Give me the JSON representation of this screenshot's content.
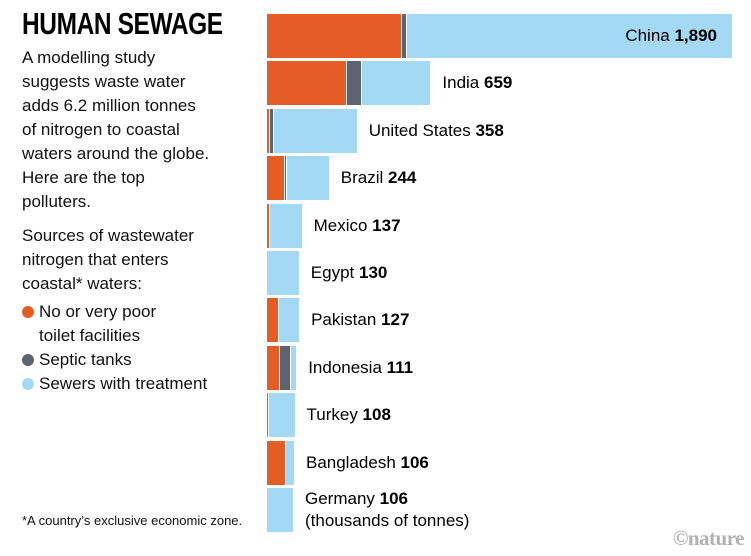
{
  "title": "HUMAN SEWAGE",
  "intro": "A modelling study\nsuggests waste water\nadds 6.2 million tonnes\nof nitrogen to coastal\nwaters around the globe.\nHere are the top\npolluters.",
  "legend": {
    "heading": "Sources of wastewater\nnitrogen that enters\ncoastal* waters:",
    "items": [
      {
        "key": "no-toilet",
        "label": "No or very poor\ntoilet facilities",
        "color": "#e55c27"
      },
      {
        "key": "septic-tanks",
        "label": "Septic tanks",
        "color": "#5b6470"
      },
      {
        "key": "sewers",
        "label": "Sewers with treatment",
        "color": "#a3d9f5"
      }
    ]
  },
  "footnote": "*A country’s exclusive economic zone.",
  "credit": "©nature",
  "chart_data": {
    "type": "bar",
    "orientation": "horizontal",
    "stacked": true,
    "grid": false,
    "legend_position": "left",
    "xlim": [
      0,
      1890
    ],
    "unit": "thousands of tonnes",
    "series": [
      {
        "key": "no-toilet",
        "name": "No or very poor toilet facilities",
        "color": "#e55c27"
      },
      {
        "key": "septic-tanks",
        "name": "Septic tanks",
        "color": "#5b6470"
      },
      {
        "key": "sewers",
        "name": "Sewers with treatment",
        "color": "#a3d9f5"
      }
    ],
    "rows": [
      {
        "country": "China",
        "total": 1890,
        "total_label": "1,890",
        "values": [
          547,
          16,
          1327
        ],
        "label_inside": true
      },
      {
        "country": "India",
        "total": 659,
        "total_label": "659",
        "values": [
          323,
          57,
          279
        ]
      },
      {
        "country": "United States",
        "total": 358,
        "total_label": "358",
        "values": [
          8,
          12,
          338
        ]
      },
      {
        "country": "Brazil",
        "total": 244,
        "total_label": "244",
        "values": [
          69,
          4,
          171
        ]
      },
      {
        "country": "Mexico",
        "total": 137,
        "total_label": "137",
        "values": [
          8,
          0,
          129
        ]
      },
      {
        "country": "Egypt",
        "total": 130,
        "total_label": "130",
        "values": [
          0,
          0,
          130
        ]
      },
      {
        "country": "Pakistan",
        "total": 127,
        "total_label": "127",
        "values": [
          45,
          0,
          82
        ]
      },
      {
        "country": "Indonesia",
        "total": 111,
        "total_label": "111",
        "values": [
          49,
          42,
          20
        ]
      },
      {
        "country": "Turkey",
        "total": 108,
        "total_label": "108",
        "values": [
          4,
          0,
          104
        ]
      },
      {
        "country": "Bangladesh",
        "total": 106,
        "total_label": "106",
        "values": [
          73,
          0,
          33
        ]
      },
      {
        "country": "Germany",
        "total": 106,
        "total_label": "106",
        "values": [
          0,
          0,
          106
        ],
        "sub_label": "(thousands of tonnes)"
      }
    ]
  }
}
